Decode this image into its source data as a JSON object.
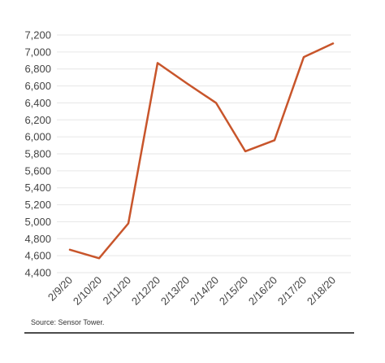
{
  "chart_data": {
    "type": "line",
    "title": "",
    "xlabel": "",
    "ylabel": "",
    "x": [
      "2/9/20",
      "2/10/20",
      "2/11/20",
      "2/12/20",
      "2/13/20",
      "2/14/20",
      "2/15/20",
      "2/16/20",
      "2/17/20",
      "2/18/20"
    ],
    "series": [
      {
        "values": [
          4670,
          4570,
          4980,
          6870,
          6630,
          6400,
          5830,
          5960,
          6940,
          7100
        ],
        "color": "#c8552b"
      }
    ],
    "ylim": [
      4400,
      7200
    ],
    "yticks": [
      4400,
      4600,
      4800,
      5000,
      5200,
      5400,
      5600,
      5800,
      6000,
      6200,
      6400,
      6600,
      6800,
      7000,
      7200
    ],
    "ytick_labels": [
      "4,400",
      "4,600",
      "4,800",
      "5,000",
      "5,200",
      "5,400",
      "5,600",
      "5,800",
      "6,000",
      "6,200",
      "6,400",
      "6,600",
      "6,800",
      "7,000",
      "7,200"
    ],
    "grid": true,
    "gridline_color": "#e6e6e6"
  },
  "footer": {
    "source": "Source: Sensor Tower."
  }
}
